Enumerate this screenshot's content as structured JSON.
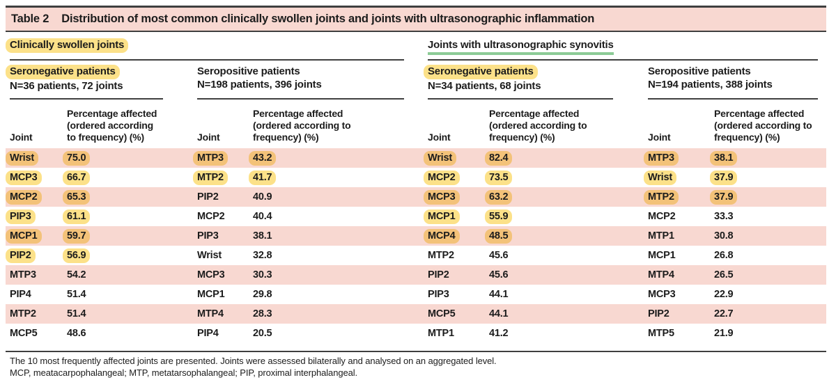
{
  "table_title": {
    "label": "Table 2",
    "text": "Distribution of most common clinically swollen joints and joints with ultrasonographic inflammation"
  },
  "column_headers": {
    "joint": "Joint",
    "percentage": "Percentage affected (ordered according to frequency) (%)"
  },
  "groups": [
    {
      "heading": "Clinically swollen joints",
      "heading_highlight": "yellow",
      "subtables": [
        {
          "title": "Seronegative patients",
          "title_highlight": true,
          "subtitle": "N=36 patients, 72 joints",
          "rows": [
            {
              "joint": "Wrist",
              "pct": "75.0",
              "hl": true
            },
            {
              "joint": "MCP3",
              "pct": "66.7",
              "hl": true
            },
            {
              "joint": "MCP2",
              "pct": "65.3",
              "hl": true
            },
            {
              "joint": "PIP3",
              "pct": "61.1",
              "hl": true
            },
            {
              "joint": "MCP1",
              "pct": "59.7",
              "hl": true
            },
            {
              "joint": "PIP2",
              "pct": "56.9",
              "hl": true
            },
            {
              "joint": "MTP3",
              "pct": "54.2",
              "hl": false
            },
            {
              "joint": "PIP4",
              "pct": "51.4",
              "hl": false
            },
            {
              "joint": "MTP2",
              "pct": "51.4",
              "hl": false
            },
            {
              "joint": "MCP5",
              "pct": "48.6",
              "hl": false
            }
          ]
        },
        {
          "title": "Seropositive patients",
          "title_highlight": false,
          "subtitle": "N=198 patients, 396 joints",
          "rows": [
            {
              "joint": "MTP3",
              "pct": "43.2",
              "hl": true
            },
            {
              "joint": "MTP2",
              "pct": "41.7",
              "hl": true
            },
            {
              "joint": "PIP2",
              "pct": "40.9",
              "hl": false
            },
            {
              "joint": "MCP2",
              "pct": "40.4",
              "hl": false
            },
            {
              "joint": "PIP3",
              "pct": "38.1",
              "hl": false
            },
            {
              "joint": "Wrist",
              "pct": "32.8",
              "hl": false
            },
            {
              "joint": "MCP3",
              "pct": "30.3",
              "hl": false
            },
            {
              "joint": "MCP1",
              "pct": "29.8",
              "hl": false
            },
            {
              "joint": "MTP4",
              "pct": "28.3",
              "hl": false
            },
            {
              "joint": "PIP4",
              "pct": "20.5",
              "hl": false
            }
          ]
        }
      ]
    },
    {
      "heading": "Joints with ultrasonographic synovitis",
      "heading_highlight": "green-underline",
      "subtables": [
        {
          "title": "Seronegative patients",
          "title_highlight": true,
          "subtitle": "N=34 patients, 68 joints",
          "rows": [
            {
              "joint": "Wrist",
              "pct": "82.4",
              "hl": true
            },
            {
              "joint": "MCP2",
              "pct": "73.5",
              "hl": true
            },
            {
              "joint": "MCP3",
              "pct": "63.2",
              "hl": true
            },
            {
              "joint": "MCP1",
              "pct": "55.9",
              "hl": true
            },
            {
              "joint": "MCP4",
              "pct": "48.5",
              "hl": true
            },
            {
              "joint": "MTP2",
              "pct": "45.6",
              "hl": false
            },
            {
              "joint": "PIP2",
              "pct": "45.6",
              "hl": false
            },
            {
              "joint": "PIP3",
              "pct": "44.1",
              "hl": false
            },
            {
              "joint": "MCP5",
              "pct": "44.1",
              "hl": false
            },
            {
              "joint": "MTP1",
              "pct": "41.2",
              "hl": false
            }
          ]
        },
        {
          "title": "Seropositive patients",
          "title_highlight": false,
          "subtitle": "N=194 patients, 388 joints",
          "rows": [
            {
              "joint": "MTP3",
              "pct": "38.1",
              "hl": true
            },
            {
              "joint": "Wrist",
              "pct": "37.9",
              "hl": true
            },
            {
              "joint": "MTP2",
              "pct": "37.9",
              "hl": true
            },
            {
              "joint": "MCP2",
              "pct": "33.3",
              "hl": false
            },
            {
              "joint": "MTP1",
              "pct": "30.8",
              "hl": false
            },
            {
              "joint": "MCP1",
              "pct": "26.8",
              "hl": false
            },
            {
              "joint": "MTP4",
              "pct": "26.5",
              "hl": false
            },
            {
              "joint": "MCP3",
              "pct": "22.9",
              "hl": false
            },
            {
              "joint": "PIP2",
              "pct": "22.7",
              "hl": false
            },
            {
              "joint": "MTP5",
              "pct": "21.9",
              "hl": false
            }
          ]
        }
      ]
    }
  ],
  "footnotes": [
    "The 10 most frequently affected joints are presented. Joints were assessed bilaterally and analysed on an aggregated level.",
    "MCP, meatacarpophalangeal; MTP, metatarsophalangeal; PIP, proximal interphalangeal."
  ],
  "colors": {
    "row_pink": "#f8d8d1",
    "highlight_yellow": "#fce189",
    "highlight_orange": "#f3c279",
    "green_underline": "#8ccb96",
    "rule": "#3f3f3f"
  }
}
